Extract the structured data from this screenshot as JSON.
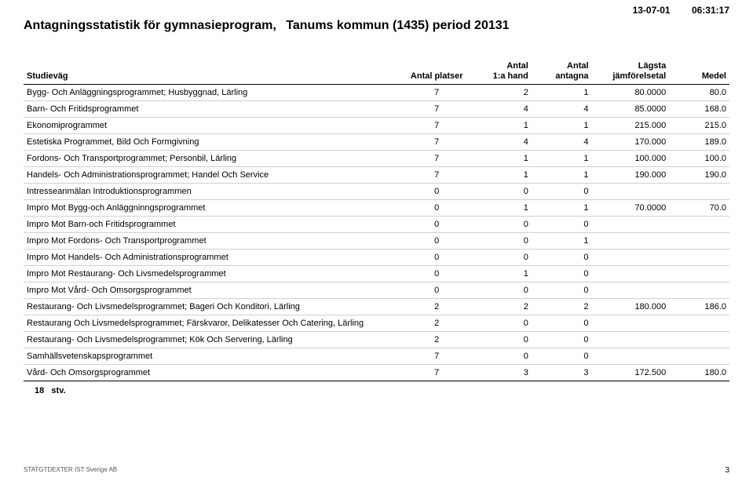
{
  "meta": {
    "date": "13-07-01",
    "time": "06:31:17",
    "title_a": "Antagningsstatistik för gymnasieprogram,",
    "title_b": "Tanums kommun (1435) period 20131",
    "count_value": "18",
    "count_unit": "stv.",
    "footer_left": "STATGTDEXTER IST Sverige AB",
    "page_number": "3"
  },
  "columns": {
    "name": "Studieväg",
    "platser": "Antal platser",
    "hand_a": "Antal",
    "hand_b": "1:a hand",
    "antagna_a": "Antal",
    "antagna_b": "antagna",
    "jam_a": "Lägsta",
    "jam_b": "jämförelsetal",
    "medel": "Medel"
  },
  "rows": [
    {
      "name": "Bygg- Och Anläggningsprogrammet; Husbyggnad, Lärling",
      "platser": "7",
      "hand": "2",
      "antagna": "1",
      "jam": "80.0000",
      "medel": "80.0"
    },
    {
      "name": "Barn- Och Fritidsprogrammet",
      "platser": "7",
      "hand": "4",
      "antagna": "4",
      "jam": "85.0000",
      "medel": "168.0"
    },
    {
      "name": "Ekonomiprogrammet",
      "platser": "7",
      "hand": "1",
      "antagna": "1",
      "jam": "215.000",
      "medel": "215.0"
    },
    {
      "name": "Estetiska Programmet, Bild Och Formgivning",
      "platser": "7",
      "hand": "4",
      "antagna": "4",
      "jam": "170.000",
      "medel": "189.0"
    },
    {
      "name": "Fordons- Och Transportprogrammet; Personbil, Lärling",
      "platser": "7",
      "hand": "1",
      "antagna": "1",
      "jam": "100.000",
      "medel": "100.0"
    },
    {
      "name": "Handels- Och Administrationsprogrammet; Handel Och Service",
      "platser": "7",
      "hand": "1",
      "antagna": "1",
      "jam": "190.000",
      "medel": "190.0"
    },
    {
      "name": "Intresseanmälan Introduktionsprogrammen",
      "platser": "0",
      "hand": "0",
      "antagna": "0",
      "jam": "",
      "medel": ""
    },
    {
      "name": "Impro Mot Bygg-och Anläggninngsprogrammet",
      "platser": "0",
      "hand": "1",
      "antagna": "1",
      "jam": "70.0000",
      "medel": "70.0"
    },
    {
      "name": "Impro Mot Barn-och Fritidsprogrammet",
      "platser": "0",
      "hand": "0",
      "antagna": "0",
      "jam": "",
      "medel": ""
    },
    {
      "name": "Impro Mot Fordons- Och Transportprogrammet",
      "platser": "0",
      "hand": "0",
      "antagna": "1",
      "jam": "",
      "medel": ""
    },
    {
      "name": "Impro Mot Handels- Och Administrationsprogrammet",
      "platser": "0",
      "hand": "0",
      "antagna": "0",
      "jam": "",
      "medel": ""
    },
    {
      "name": "Impro Mot Restaurang- Och Livsmedelsprogrammet",
      "platser": "0",
      "hand": "1",
      "antagna": "0",
      "jam": "",
      "medel": ""
    },
    {
      "name": "Impro Mot Vård- Och Omsorgsprogrammet",
      "platser": "0",
      "hand": "0",
      "antagna": "0",
      "jam": "",
      "medel": ""
    },
    {
      "name": "Restaurang- Och Livsmedelsprogrammet; Bageri Och Konditori, Lärling",
      "platser": "2",
      "hand": "2",
      "antagna": "2",
      "jam": "180.000",
      "medel": "186.0"
    },
    {
      "name": "Restaurang Och Livsmedelsprogrammet; Färskvaror, Delikatesser Och Catering, Lärling",
      "platser": "2",
      "hand": "0",
      "antagna": "0",
      "jam": "",
      "medel": ""
    },
    {
      "name": "Restaurang- Och Livsmedelsprogrammet; Kök Och Servering, Lärling",
      "platser": "2",
      "hand": "0",
      "antagna": "0",
      "jam": "",
      "medel": ""
    },
    {
      "name": "Samhällsvetenskapsprogrammet",
      "platser": "7",
      "hand": "0",
      "antagna": "0",
      "jam": "",
      "medel": ""
    },
    {
      "name": "Vård- Och Omsorgsprogrammet",
      "platser": "7",
      "hand": "3",
      "antagna": "3",
      "jam": "172.500",
      "medel": "180.0"
    }
  ]
}
